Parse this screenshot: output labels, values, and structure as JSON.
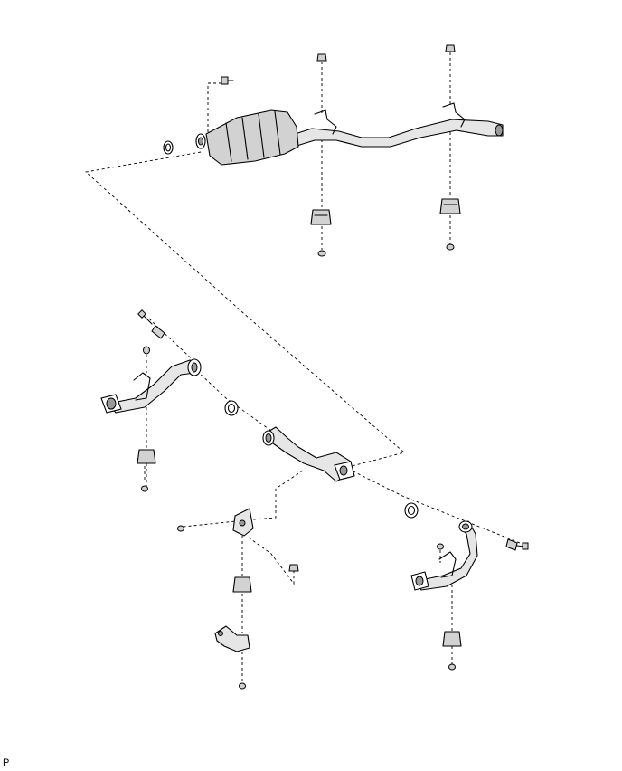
{
  "diagram": {
    "code_label": "P"
  },
  "colors": {
    "line": "#000000",
    "part_fill": "#d2d2d2",
    "background": "#ffffff"
  }
}
